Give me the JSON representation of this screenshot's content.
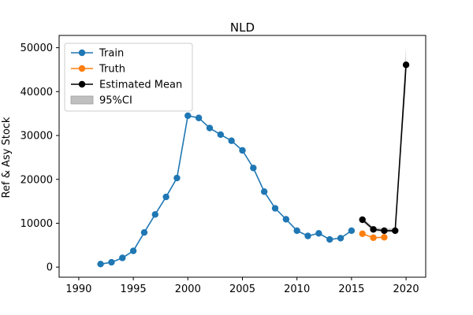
{
  "chart_data": {
    "type": "line",
    "title": "NLD",
    "xlabel": "",
    "ylabel": "Ref & Asy Stock",
    "xlim": [
      1988.2,
      2021.8
    ],
    "ylim": [
      -2300,
      52800
    ],
    "xticks": [
      1990,
      1995,
      2000,
      2005,
      2010,
      2015,
      2020
    ],
    "yticks": [
      0,
      10000,
      20000,
      30000,
      40000,
      50000
    ],
    "legend_position": "upper left",
    "grid": false,
    "series": [
      {
        "name": "Train",
        "color": "#1f77b4",
        "marker": "circle",
        "x": [
          1992,
          1993,
          1994,
          1995,
          1996,
          1997,
          1998,
          1999,
          2000,
          2001,
          2002,
          2003,
          2004,
          2005,
          2006,
          2007,
          2008,
          2009,
          2010,
          2011,
          2012,
          2013,
          2014,
          2015
        ],
        "y": [
          700,
          1100,
          2100,
          3700,
          7900,
          12000,
          16000,
          20300,
          34500,
          34000,
          31700,
          30200,
          28800,
          26600,
          22600,
          17200,
          13400,
          10900,
          8300,
          7100,
          7700,
          6300,
          6600,
          8300
        ]
      },
      {
        "name": "Truth",
        "color": "#ff7f0e",
        "marker": "circle",
        "x": [
          2016,
          2017,
          2018
        ],
        "y": [
          7600,
          6700,
          6800
        ]
      },
      {
        "name": "Estimated Mean",
        "color": "#000000",
        "marker": "circle",
        "x": [
          2016,
          2017,
          2018,
          2019,
          2020
        ],
        "y": [
          10800,
          8600,
          8300,
          8300,
          46100
        ]
      }
    ],
    "ci_band": {
      "name": "95%CI",
      "color": "#bfbfbf",
      "x": [
        2016,
        2017,
        2018,
        2019,
        2020
      ],
      "lower": [
        10300,
        8200,
        7900,
        7900,
        42000
      ],
      "upper": [
        11300,
        9100,
        8800,
        8800,
        50200
      ]
    }
  }
}
